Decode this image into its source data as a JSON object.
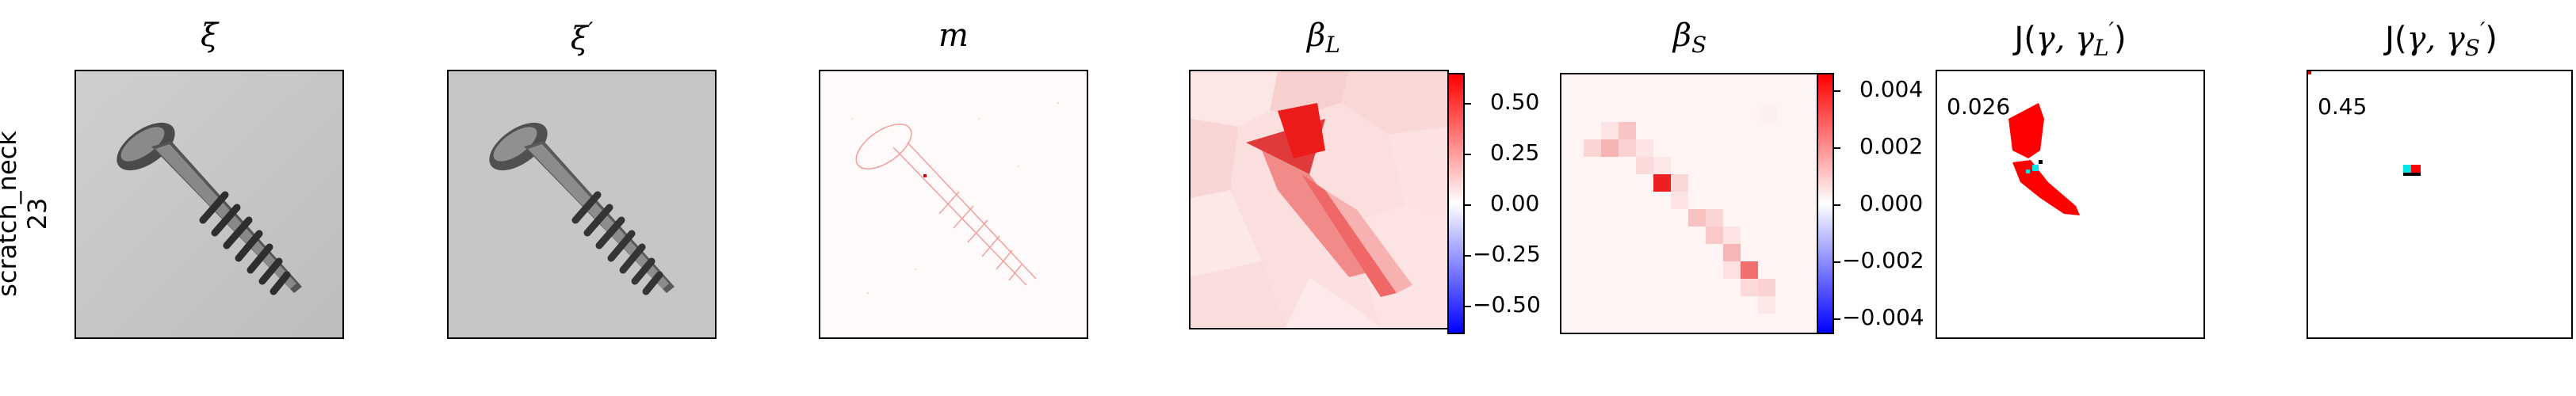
{
  "row": {
    "label_line1": "scratch_neck",
    "label_line2": "23"
  },
  "titles": {
    "xi": "ξ",
    "xi_prime_base": "ξ",
    "xi_prime_mark": "′",
    "m": "m",
    "beta_l_base": "β",
    "beta_l_sub": "L",
    "beta_s_base": "β",
    "beta_s_sub": "S",
    "j_l_prefix": "J(",
    "j_l_gamma": "γ, γ",
    "j_l_sub": "L",
    "j_l_sup": "′",
    "j_l_suffix": ")",
    "j_s_prefix": "J(",
    "j_s_gamma": "γ, γ",
    "j_s_sub": "S",
    "j_s_sup": "′",
    "j_s_suffix": ")"
  },
  "colorbar_l": {
    "ticks": [
      "0.50",
      "0.25",
      "0.00",
      "−0.25",
      "−0.50"
    ]
  },
  "colorbar_s": {
    "ticks": [
      "0.004",
      "0.002",
      "0.000",
      "−0.002",
      "−0.004"
    ]
  },
  "scores": {
    "j_l": "0.026",
    "j_s": "0.45"
  },
  "colors": {
    "positive": "#ff0000",
    "negative": "#0000ff",
    "match": "#00e5e5"
  }
}
